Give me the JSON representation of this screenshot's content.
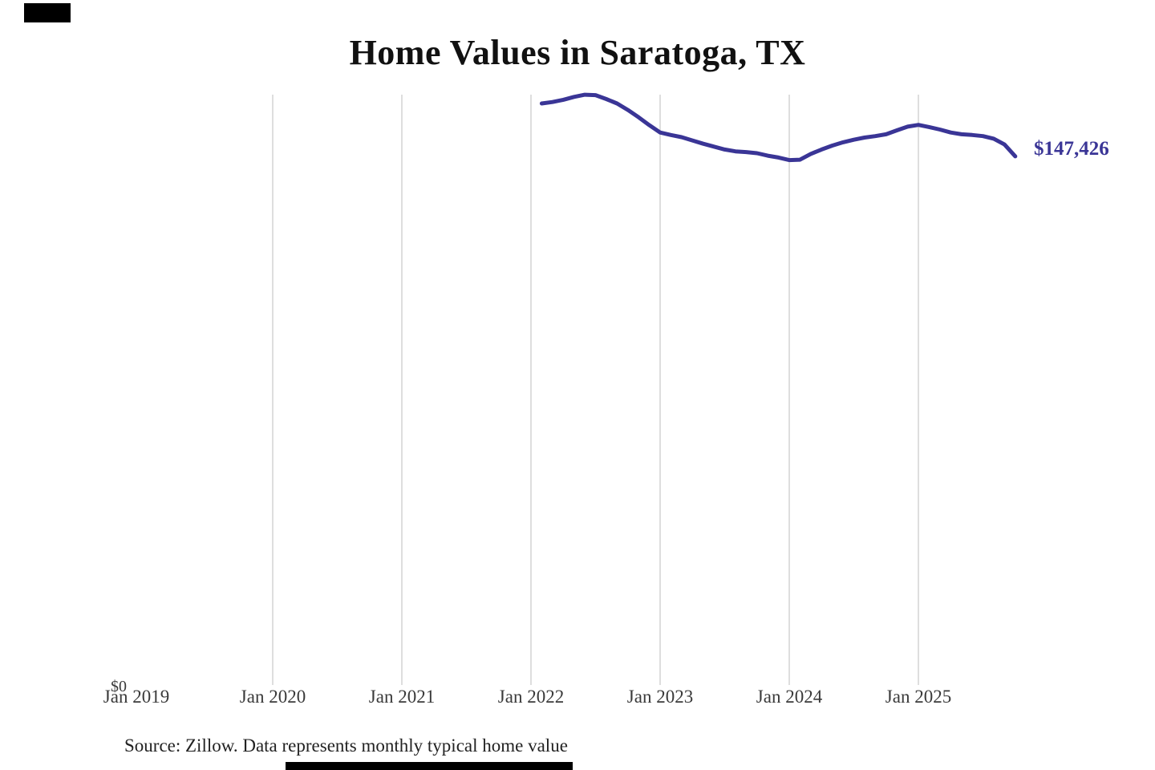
{
  "title": "Home Values in Saratoga, TX",
  "source_note": "Source: Zillow. Data represents monthly typical home value",
  "last_value_label": "$147,426",
  "y_zero_label": "$0",
  "colors": {
    "line": "#3a3596",
    "value_label": "#3a3596",
    "gridline": "#cccccc",
    "tick_text": "#3a3a3a",
    "title_text": "#111111",
    "note_text": "#222222",
    "redaction": "#000000"
  },
  "x_axis": {
    "ticks": [
      {
        "label": "Jan 2019",
        "month": "2019-01",
        "gridline": false
      },
      {
        "label": "Jan 2020",
        "month": "2020-01",
        "gridline": true
      },
      {
        "label": "Jan 2021",
        "month": "2021-01",
        "gridline": true
      },
      {
        "label": "Jan 2022",
        "month": "2022-01",
        "gridline": true
      },
      {
        "label": "Jan 2023",
        "month": "2023-01",
        "gridline": true
      },
      {
        "label": "Jan 2024",
        "month": "2024-01",
        "gridline": true
      },
      {
        "label": "Jan 2025",
        "month": "2025-01",
        "gridline": true
      }
    ]
  },
  "redactions": [
    {
      "name": "top-left-box"
    },
    {
      "name": "bottom-bar"
    }
  ],
  "chart_data": {
    "type": "line",
    "title": "Home Values in Saratoga, TX",
    "xlabel": "",
    "ylabel": "",
    "ylim": [
      0,
      165000
    ],
    "grid": "vertical gridlines at January of each year, 2020-2025",
    "legend_position": "none",
    "series_name": "Monthly typical home value (USD)",
    "last_point_label": "$147,426",
    "x": [
      "2022-02",
      "2022-03",
      "2022-04",
      "2022-05",
      "2022-06",
      "2022-07",
      "2022-08",
      "2022-09",
      "2022-10",
      "2022-11",
      "2022-12",
      "2023-01",
      "2023-02",
      "2023-03",
      "2023-04",
      "2023-05",
      "2023-06",
      "2023-07",
      "2023-08",
      "2023-09",
      "2023-10",
      "2023-11",
      "2023-12",
      "2024-01",
      "2024-02",
      "2024-03",
      "2024-04",
      "2024-05",
      "2024-06",
      "2024-07",
      "2024-08",
      "2024-09",
      "2024-10",
      "2024-11",
      "2024-12",
      "2025-01",
      "2025-02",
      "2025-03",
      "2025-04",
      "2025-05",
      "2025-06",
      "2025-07",
      "2025-08",
      "2025-09",
      "2025-10"
    ],
    "values": [
      162000,
      162400,
      163000,
      163800,
      164400,
      164300,
      163200,
      162000,
      160200,
      158200,
      156000,
      154000,
      153300,
      152700,
      151800,
      150900,
      150100,
      149300,
      148800,
      148600,
      148300,
      147600,
      147100,
      146400,
      146500,
      148100,
      149300,
      150400,
      151300,
      152000,
      152600,
      153000,
      153500,
      154600,
      155600,
      156100,
      155500,
      154800,
      154000,
      153500,
      153300,
      153000,
      152300,
      150700,
      147426
    ]
  }
}
